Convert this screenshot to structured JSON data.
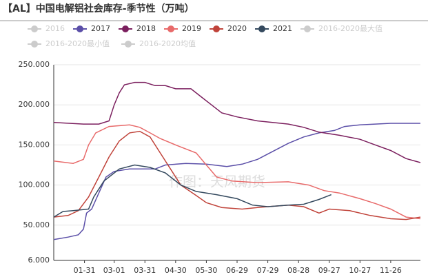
{
  "chart_data": {
    "type": "line",
    "title": "【AL】中国电解铝社会库存-季节性（万吨）",
    "watermark": "作图：天风期货",
    "xlim": [
      1,
      359
    ],
    "xticks": [
      {
        "value": 31,
        "label": "01-31"
      },
      {
        "value": 60,
        "label": "03-01"
      },
      {
        "value": 90,
        "label": "03-31"
      },
      {
        "value": 120,
        "label": "04-30"
      },
      {
        "value": 150,
        "label": "05-30"
      },
      {
        "value": 180,
        "label": "06-29"
      },
      {
        "value": 210,
        "label": "07-29"
      },
      {
        "value": 240,
        "label": "08-28"
      },
      {
        "value": 270,
        "label": "09-27"
      },
      {
        "value": 300,
        "label": "10-27"
      },
      {
        "value": 330,
        "label": "11-26"
      }
    ],
    "ylim": [
      6,
      250
    ],
    "yticks": [
      {
        "value": 6,
        "label": "6.000"
      },
      {
        "value": 50,
        "label": "50.000"
      },
      {
        "value": 100,
        "label": "100.000"
      },
      {
        "value": 150,
        "label": "150.000"
      },
      {
        "value": 200,
        "label": "200.000"
      },
      {
        "value": 250,
        "label": "250.000"
      }
    ],
    "grid": true,
    "hidden_series": [
      {
        "name": "2016",
        "color": "#cccccc"
      },
      {
        "name": "2016-2020最大值",
        "color": "#cccccc"
      },
      {
        "name": "2016-2020最小值",
        "color": "#cccccc"
      },
      {
        "name": "2016-2020均值",
        "color": "#cccccc"
      }
    ],
    "series": [
      {
        "name": "2017",
        "color": "#5b4fa8",
        "x": [
          1,
          15,
          25,
          30,
          33,
          38,
          45,
          52,
          60,
          75,
          100,
          110,
          130,
          150,
          170,
          185,
          200,
          215,
          230,
          245,
          260,
          275,
          285,
          300,
          315,
          330,
          345,
          359
        ],
        "values": [
          32,
          35,
          38,
          45,
          65,
          70,
          90,
          110,
          117,
          120,
          120,
          125,
          127,
          126,
          123,
          126,
          132,
          142,
          152,
          160,
          165,
          168,
          173,
          175,
          176,
          177,
          177,
          177
        ]
      },
      {
        "name": "2018",
        "color": "#7b1f5e",
        "x": [
          1,
          30,
          45,
          55,
          60,
          65,
          70,
          80,
          90,
          100,
          110,
          120,
          135,
          145,
          155,
          165,
          180,
          200,
          230,
          245,
          260,
          280,
          300,
          315,
          330,
          345,
          359
        ],
        "values": [
          178,
          176,
          176,
          180,
          200,
          215,
          225,
          228,
          228,
          224,
          224,
          220,
          220,
          210,
          200,
          190,
          185,
          180,
          176,
          172,
          166,
          162,
          157,
          150,
          143,
          133,
          128
        ]
      },
      {
        "name": "2019",
        "color": "#e86a6a",
        "x": [
          1,
          20,
          30,
          35,
          42,
          55,
          75,
          85,
          95,
          105,
          120,
          140,
          150,
          160,
          175,
          200,
          230,
          250,
          265,
          280,
          300,
          315,
          330,
          345,
          359
        ],
        "values": [
          130,
          127,
          132,
          150,
          165,
          173,
          175,
          172,
          165,
          158,
          150,
          140,
          125,
          110,
          105,
          103,
          104,
          100,
          93,
          90,
          83,
          77,
          70,
          60,
          58
        ]
      },
      {
        "name": "2020",
        "color": "#c0433a",
        "x": [
          1,
          15,
          25,
          35,
          45,
          55,
          65,
          75,
          85,
          95,
          105,
          115,
          125,
          140,
          150,
          165,
          185,
          200,
          230,
          245,
          260,
          270,
          290,
          310,
          330,
          345,
          359
        ],
        "values": [
          60,
          62,
          68,
          85,
          110,
          135,
          155,
          165,
          167,
          160,
          140,
          120,
          100,
          87,
          78,
          72,
          70,
          72,
          75,
          73,
          65,
          70,
          68,
          62,
          58,
          57,
          60
        ]
      },
      {
        "name": "2021",
        "color": "#34495e",
        "x": [
          1,
          10,
          20,
          35,
          40,
          50,
          65,
          80,
          95,
          110,
          125,
          140,
          160,
          180,
          195,
          210,
          230,
          245,
          260,
          272
        ],
        "values": [
          60,
          67,
          68,
          70,
          85,
          105,
          120,
          125,
          122,
          115,
          100,
          92,
          88,
          83,
          75,
          73,
          75,
          76,
          82,
          88
        ]
      }
    ]
  }
}
